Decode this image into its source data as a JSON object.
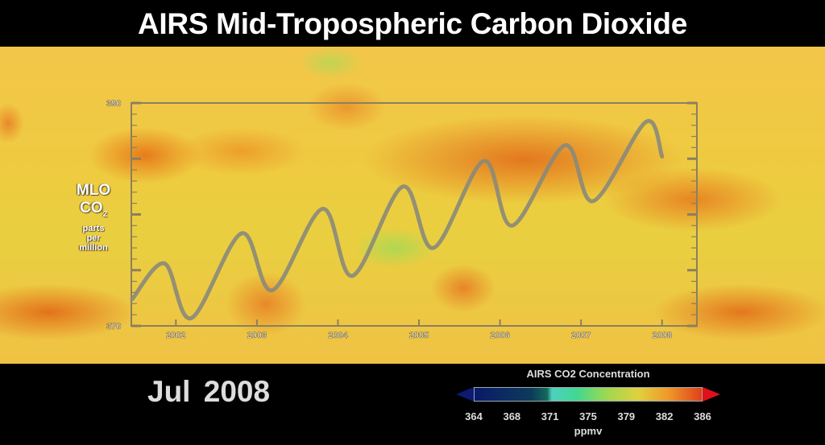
{
  "title": "AIRS Mid-Tropospheric Carbon Dioxide",
  "date_label": "Jul  2008",
  "overlay_label": {
    "line1": "MLO",
    "line2": "CO",
    "line2_sub": "2",
    "line3": "parts",
    "line4": "per",
    "line5": "million"
  },
  "colorbar": {
    "title": "AIRS CO2 Concentration",
    "ticks": [
      "364",
      "368",
      "371",
      "375",
      "379",
      "382",
      "386"
    ],
    "unit": "ppmv",
    "colors": [
      "#0a1a6a",
      "#146a5a",
      "#50d0c0",
      "#9ed850",
      "#e0d040",
      "#ef9a2a",
      "#e0401a"
    ]
  },
  "chart_data": {
    "type": "line",
    "title": "",
    "xlabel": "",
    "ylabel": "MLO CO2 parts per million",
    "xlim": [
      2001.45,
      2008.43
    ],
    "ylim": [
      370,
      390
    ],
    "y_tick_labels": [
      "370",
      "390"
    ],
    "x_tick_labels": [
      "2002",
      "2003",
      "2004",
      "2005",
      "2006",
      "2007",
      "2008"
    ],
    "x_ticks": [
      2002,
      2003,
      2004,
      2005,
      2006,
      2007,
      2008
    ],
    "series": [
      {
        "name": "MLO CO2",
        "color": "#8a8a7a",
        "x": [
          2001.46,
          2001.86,
          2002.19,
          2002.81,
          2003.19,
          2003.81,
          2004.18,
          2004.8,
          2005.18,
          2005.8,
          2006.15,
          2006.8,
          2007.15,
          2007.8,
          2008.0
        ],
        "y": [
          372.4,
          375.6,
          370.7,
          378.3,
          373.2,
          380.5,
          374.5,
          382.5,
          377.0,
          384.8,
          379.0,
          386.2,
          381.2,
          388.3,
          385.2
        ]
      }
    ]
  }
}
